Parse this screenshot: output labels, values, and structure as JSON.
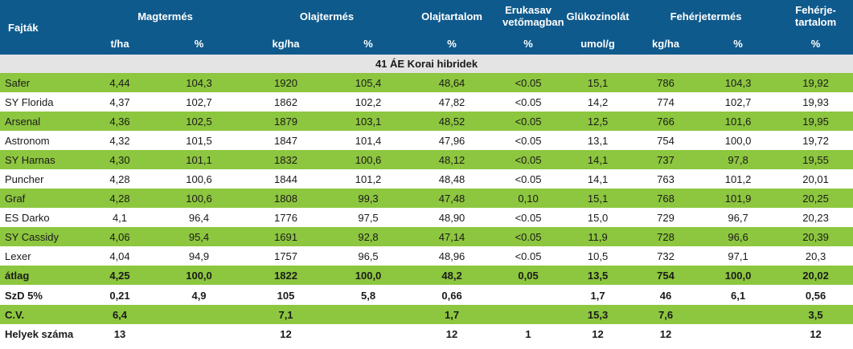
{
  "header": {
    "corner": "Fajták",
    "groups": [
      "Magtermés",
      "Olajtermés",
      "Olajtartalom",
      "Erukasav vetőmagban",
      "Glükozinolát",
      "Fehérjetermés",
      "Fehérje-tartalom"
    ],
    "units": [
      "t/ha",
      "%",
      "kg/ha",
      "%",
      "%",
      "%",
      "umol/g",
      "kg/ha",
      "%",
      "%"
    ]
  },
  "section_title": "41  ÁE Korai hibridek",
  "rows": [
    [
      "Safer",
      "4,44",
      "104,3",
      "1920",
      "105,4",
      "48,64",
      "<0.05",
      "15,1",
      "786",
      "104,3",
      "19,92"
    ],
    [
      "SY Florida",
      "4,37",
      "102,7",
      "1862",
      "102,2",
      "47,82",
      "<0.05",
      "14,2",
      "774",
      "102,7",
      "19,93"
    ],
    [
      "Arsenal",
      "4,36",
      "102,5",
      "1879",
      "103,1",
      "48,52",
      "<0.05",
      "12,5",
      "766",
      "101,6",
      "19,95"
    ],
    [
      "Astronom",
      "4,32",
      "101,5",
      "1847",
      "101,4",
      "47,96",
      "<0.05",
      "13,1",
      "754",
      "100,0",
      "19,72"
    ],
    [
      "SY Harnas",
      "4,30",
      "101,1",
      "1832",
      "100,6",
      "48,12",
      "<0.05",
      "14,1",
      "737",
      "97,8",
      "19,55"
    ],
    [
      "Puncher",
      "4,28",
      "100,6",
      "1844",
      "101,2",
      "48,48",
      "<0.05",
      "14,1",
      "763",
      "101,2",
      "20,01"
    ],
    [
      "Graf",
      "4,28",
      "100,6",
      "1808",
      "99,3",
      "47,48",
      "0,10",
      "15,1",
      "768",
      "101,9",
      "20,25"
    ],
    [
      "ES Darko",
      "4,1",
      "96,4",
      "1776",
      "97,5",
      "48,90",
      "<0.05",
      "15,0",
      "729",
      "96,7",
      "20,23"
    ],
    [
      "SY Cassidy",
      "4,06",
      "95,4",
      "1691",
      "92,8",
      "47,14",
      "<0.05",
      "11,9",
      "728",
      "96,6",
      "20,39"
    ],
    [
      "Lexer",
      "4,04",
      "94,9",
      "1757",
      "96,5",
      "48,96",
      "<0.05",
      "10,5",
      "732",
      "97,1",
      "20,3"
    ]
  ],
  "stats": [
    [
      "átlag",
      "4,25",
      "100,0",
      "1822",
      "100,0",
      "48,2",
      "0,05",
      "13,5",
      "754",
      "100,0",
      "20,02"
    ],
    [
      "SzD 5%",
      "0,21",
      "4,9",
      "105",
      "5,8",
      "0,66",
      "",
      "1,7",
      "46",
      "6,1",
      "0,56"
    ],
    [
      "C.V.",
      "6,4",
      "",
      "7,1",
      "",
      "1,7",
      "",
      "15,3",
      "7,6",
      "",
      "3,5"
    ],
    [
      "Helyek száma",
      "13",
      "",
      "12",
      "",
      "12",
      "1",
      "12",
      "12",
      "",
      "12"
    ]
  ],
  "colors": {
    "header_bg": "#0f5a8c",
    "green_row": "#8dc63f",
    "section_bg": "#e4e4e4"
  }
}
